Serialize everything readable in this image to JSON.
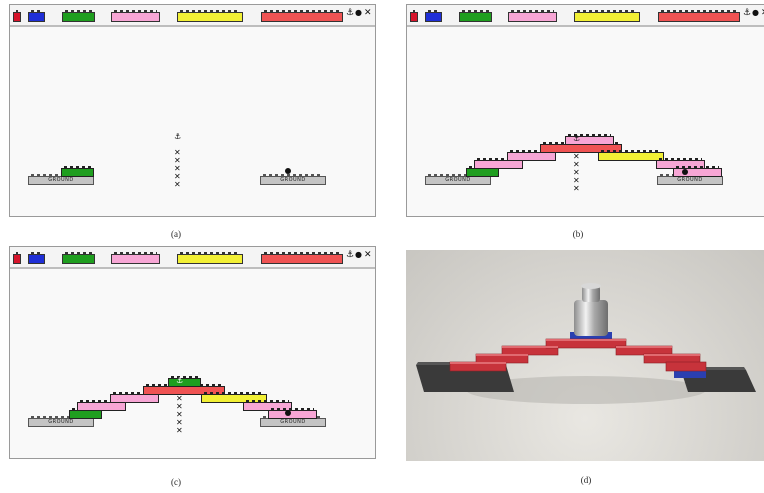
{
  "captions": {
    "a": "(a)",
    "b": "(b)",
    "c": "(c)",
    "d": "(d)"
  },
  "toolbar": {
    "icons": [
      "red-small-brick-icon",
      "blue-small-brick-icon",
      "anchor-icon",
      "dot-icon",
      "close-x-icon"
    ],
    "anchor_glyph": "⚓",
    "dot_glyph": "●",
    "close_glyph": "✕",
    "palette": [
      {
        "name": "green-brick",
        "color": "#1f9e1f"
      },
      {
        "name": "pink-brick",
        "color": "#f7a6d5"
      },
      {
        "name": "yellow-brick",
        "color": "#f2f035"
      },
      {
        "name": "red-brick",
        "color": "#ef5353"
      }
    ]
  },
  "ground_label": "GROUND",
  "canvas_marks": {
    "x_glyph": "✕",
    "anchor_glyph": "⚓"
  },
  "colors": {
    "green": "#1f9e1f",
    "pink": "#f7a6d5",
    "yellow": "#f2f035",
    "red": "#ef5353",
    "red_small": "#d6142b",
    "blue": "#1f2fd6",
    "ground": "#c4c4c4"
  }
}
